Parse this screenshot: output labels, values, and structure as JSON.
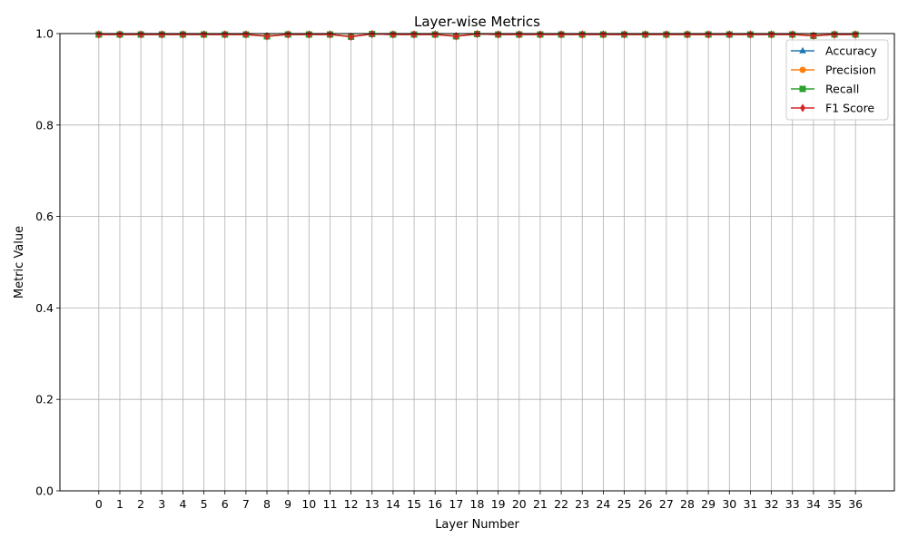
{
  "chart_data": {
    "type": "line",
    "title": "Layer-wise Metrics",
    "xlabel": "Layer Number",
    "ylabel": "Metric Value",
    "x": [
      0,
      1,
      2,
      3,
      4,
      5,
      6,
      7,
      8,
      9,
      10,
      11,
      12,
      13,
      14,
      15,
      16,
      17,
      18,
      19,
      20,
      21,
      22,
      23,
      24,
      25,
      26,
      27,
      28,
      29,
      30,
      31,
      32,
      33,
      34,
      35,
      36
    ],
    "ylim": [
      0.0,
      1.0
    ],
    "xlim": [
      -1.85,
      37.85
    ],
    "yticks": [
      "0.0",
      "0.2",
      "0.4",
      "0.6",
      "0.8",
      "1.0"
    ],
    "grid": true,
    "legend_position": "top-right",
    "series": [
      {
        "name": "Accuracy",
        "color": "#1f77b4",
        "marker": "triangle",
        "values": [
          0.998,
          0.998,
          0.998,
          0.998,
          0.998,
          0.998,
          0.998,
          0.998,
          0.995,
          0.998,
          0.998,
          0.998,
          0.994,
          0.999,
          0.998,
          0.998,
          0.998,
          0.995,
          0.999,
          0.998,
          0.998,
          0.998,
          0.998,
          0.998,
          0.998,
          0.998,
          0.998,
          0.998,
          0.998,
          0.998,
          0.998,
          0.998,
          0.998,
          0.998,
          0.996,
          0.998,
          0.998
        ]
      },
      {
        "name": "Precision",
        "color": "#ff7f0e",
        "marker": "circle",
        "values": [
          0.998,
          0.998,
          0.998,
          0.998,
          0.998,
          0.998,
          0.998,
          0.998,
          0.995,
          0.998,
          0.998,
          0.998,
          0.994,
          0.999,
          0.998,
          0.998,
          0.998,
          0.995,
          0.999,
          0.998,
          0.998,
          0.998,
          0.998,
          0.998,
          0.998,
          0.998,
          0.998,
          0.998,
          0.998,
          0.998,
          0.998,
          0.998,
          0.998,
          0.998,
          0.996,
          0.998,
          0.998
        ]
      },
      {
        "name": "Recall",
        "color": "#2ca02c",
        "marker": "square",
        "values": [
          0.998,
          0.998,
          0.998,
          0.998,
          0.998,
          0.998,
          0.998,
          0.998,
          0.994,
          0.998,
          0.998,
          0.998,
          0.993,
          0.999,
          0.998,
          0.998,
          0.998,
          0.994,
          0.999,
          0.998,
          0.998,
          0.998,
          0.998,
          0.998,
          0.998,
          0.998,
          0.998,
          0.998,
          0.998,
          0.998,
          0.998,
          0.998,
          0.998,
          0.998,
          0.995,
          0.998,
          0.998
        ]
      },
      {
        "name": "F1 Score",
        "color": "#d62728",
        "marker": "diamond",
        "values": [
          0.998,
          0.998,
          0.998,
          0.998,
          0.998,
          0.998,
          0.998,
          0.998,
          0.994,
          0.998,
          0.998,
          0.998,
          0.993,
          0.999,
          0.998,
          0.998,
          0.998,
          0.994,
          0.999,
          0.998,
          0.998,
          0.998,
          0.998,
          0.998,
          0.998,
          0.998,
          0.998,
          0.998,
          0.998,
          0.998,
          0.998,
          0.998,
          0.998,
          0.998,
          0.995,
          0.998,
          0.998
        ]
      }
    ]
  }
}
